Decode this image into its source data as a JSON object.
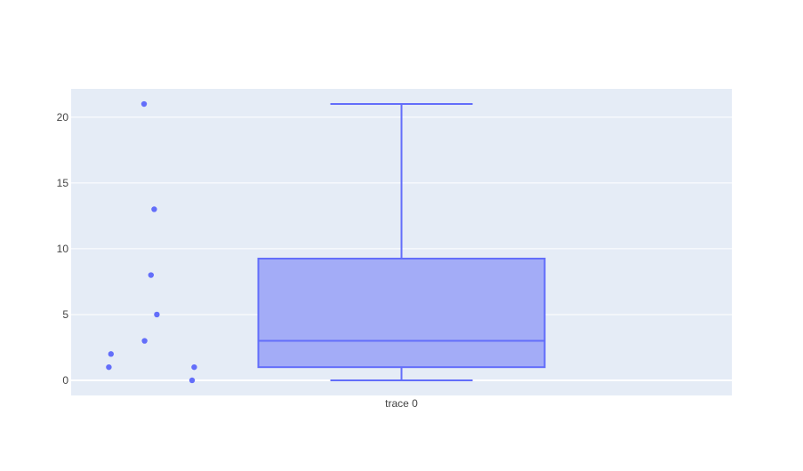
{
  "chart_data": {
    "type": "box",
    "title": "",
    "xlabel": "",
    "ylabel": "",
    "categories": [
      "trace 0"
    ],
    "ylim": [
      -1.15,
      22.15
    ],
    "yticks": [
      0,
      5,
      10,
      15,
      20
    ],
    "grid": true,
    "legend": "none",
    "colors": {
      "plot_bg": "#e5ecf6",
      "grid": "#ffffff",
      "box_fill": "#a3acf7",
      "box_line": "#636efa",
      "point": "#636efa"
    },
    "series": [
      {
        "box": {
          "lowerfence": 0,
          "q1": 1,
          "median": 3,
          "q3": 9.25,
          "upperfence": 21
        },
        "points": [
          {
            "jitter": -0.1,
            "y": 21
          },
          {
            "jitter": 0.09,
            "y": 13
          },
          {
            "jitter": 0.03,
            "y": 8
          },
          {
            "jitter": 0.14,
            "y": 5
          },
          {
            "jitter": -0.09,
            "y": 3
          },
          {
            "jitter": -0.72,
            "y": 2
          },
          {
            "jitter": -0.76,
            "y": 1
          },
          {
            "jitter": 0.84,
            "y": 1
          },
          {
            "jitter": 0.8,
            "y": 0
          }
        ]
      }
    ]
  }
}
